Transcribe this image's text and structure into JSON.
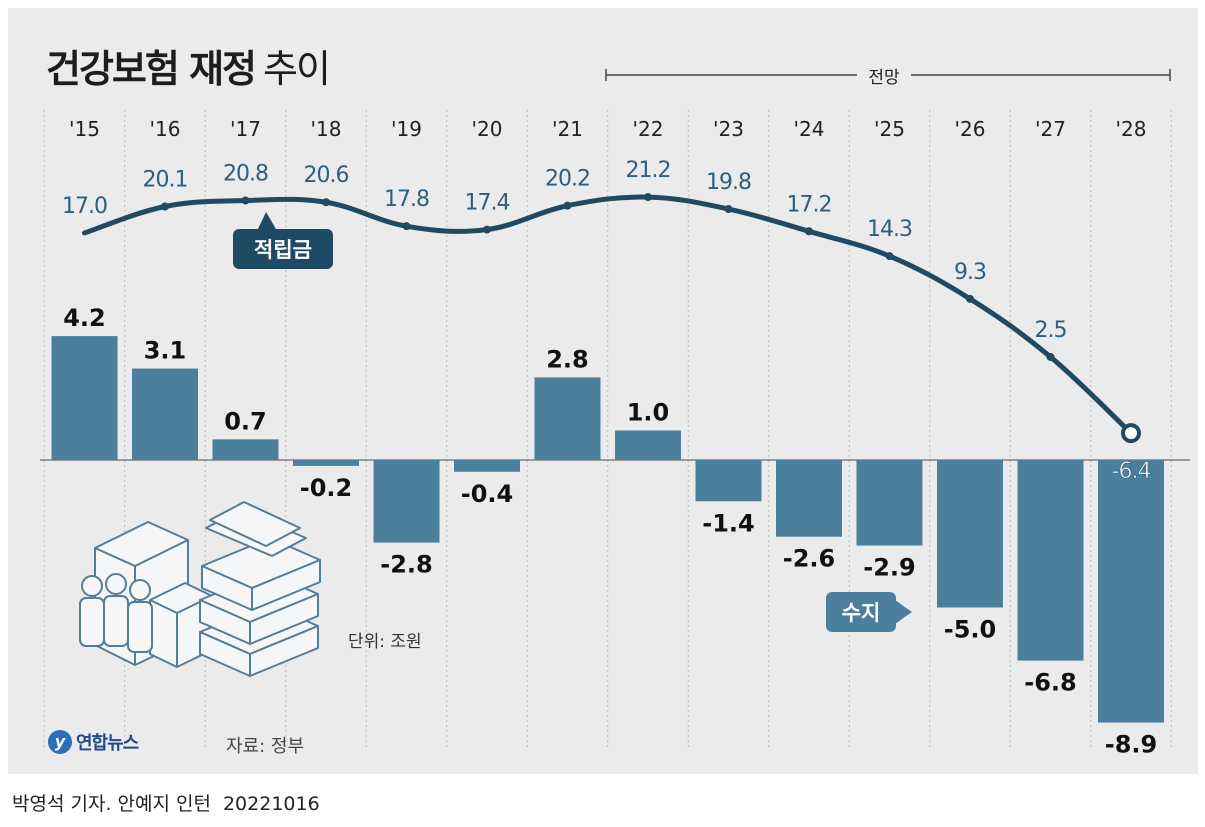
{
  "header": {
    "title_bold": "건강보험 재정",
    "title_light": "추이"
  },
  "forecast_label": "전망",
  "unit_label": "단위: 조원",
  "source_label": "자료: 정부",
  "logo_text": "연합뉴스",
  "byline": "박영석 기자. 안예지 인턴",
  "date": "20221016",
  "colors": {
    "background": "#ebebeb",
    "bar": "#4c7f9c",
    "line": "#1f4a63",
    "line_label": "#2f5f7c",
    "bar_label": "#111111"
  },
  "chart_data": {
    "type": "bar",
    "categories": [
      "'15",
      "'16",
      "'17",
      "'18",
      "'19",
      "'20",
      "'21",
      "'22",
      "'23",
      "'24",
      "'25",
      "'26",
      "'27",
      "'28"
    ],
    "series": [
      {
        "name": "수지",
        "type": "bar",
        "values": [
          4.2,
          3.1,
          0.7,
          -0.2,
          -2.8,
          -0.4,
          2.8,
          1.0,
          -1.4,
          -2.6,
          -2.9,
          -5.0,
          -6.8,
          -8.9
        ],
        "labels": [
          "4.2",
          "3.1",
          "0.7",
          "-0.2",
          "-2.8",
          "-0.4",
          "2.8",
          "1.0",
          "-1.4",
          "-2.6",
          "-2.9",
          "-5.0",
          "-6.8",
          "-8.9"
        ]
      },
      {
        "name": "적립금",
        "type": "line",
        "values": [
          17.0,
          20.1,
          20.8,
          20.6,
          17.8,
          17.4,
          20.2,
          21.2,
          19.8,
          17.2,
          14.3,
          9.3,
          2.5,
          -6.4
        ],
        "labels": [
          "17.0",
          "20.1",
          "20.8",
          "20.6",
          "17.8",
          "17.4",
          "20.2",
          "21.2",
          "19.8",
          "17.2",
          "14.3",
          "9.3",
          "2.5",
          "-6.4"
        ]
      }
    ],
    "forecast_range": [
      "'22",
      "'28"
    ],
    "grid": "vertical dotted"
  }
}
